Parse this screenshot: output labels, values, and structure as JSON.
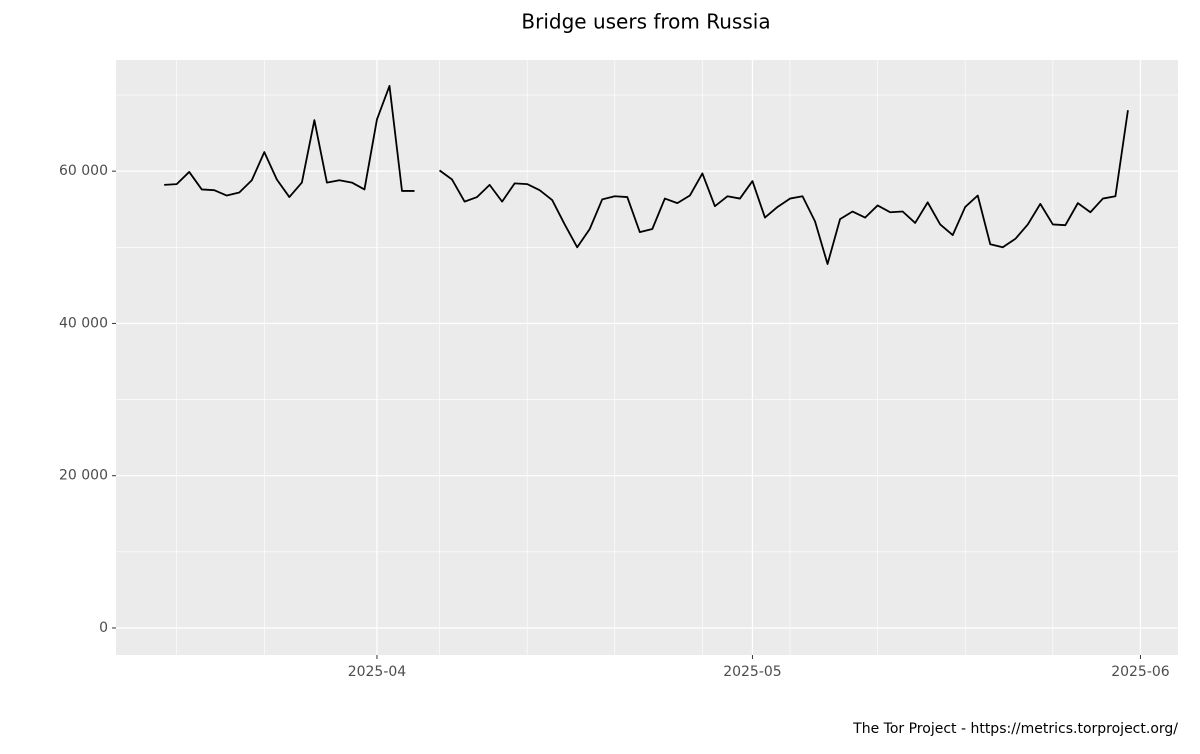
{
  "chart_data": {
    "type": "line",
    "title": "Bridge users from Russia",
    "caption": "The Tor Project - https://metrics.torproject.org/",
    "x": [
      0,
      1,
      2,
      3,
      4,
      5,
      6,
      7,
      8,
      9,
      10,
      11,
      12,
      13,
      14,
      15,
      16,
      17,
      18,
      19,
      20,
      21,
      22,
      23,
      24,
      25,
      26,
      27,
      28,
      29,
      30,
      31,
      32,
      33,
      34,
      35,
      36,
      37,
      38,
      39,
      40,
      41,
      42,
      43,
      44,
      45,
      46,
      47,
      48,
      49,
      50,
      51,
      52,
      53,
      54,
      55,
      56,
      57,
      58,
      59,
      60,
      61,
      62,
      63,
      64,
      65,
      66,
      67,
      68,
      69,
      70,
      71,
      72,
      73,
      74,
      75,
      76,
      77
    ],
    "series": [
      {
        "color": "#000000",
        "values": [
          58200,
          58300,
          59900,
          57600,
          57500,
          56800,
          57200,
          58800,
          62500,
          58900,
          56600,
          58500,
          66700,
          58500,
          58800,
          58500,
          57600,
          66800,
          71200,
          57400,
          57400,
          null,
          60100,
          58900,
          56000,
          56600,
          58200,
          56000,
          58400,
          58300,
          57500,
          56200,
          53000,
          50000,
          52400,
          56300,
          56700,
          56600,
          52000,
          52400,
          56400,
          55800,
          56800,
          59700,
          55400,
          56700,
          56400,
          58700,
          53900,
          55300,
          56400,
          56700,
          53400,
          47800,
          53700,
          54700,
          53900,
          55500,
          54600,
          54700,
          53200,
          55900,
          53000,
          51600,
          55300,
          56800,
          50400,
          50000,
          51100,
          53000,
          55700,
          53000,
          52900,
          55800,
          54600,
          56400,
          56700,
          68000
        ]
      }
    ],
    "xlim": [
      -3.85,
      81
    ],
    "xticks": [
      {
        "value": 17,
        "label": "2025-04"
      },
      {
        "value": 47,
        "label": "2025-05"
      },
      {
        "value": 78,
        "label": "2025-06"
      }
    ],
    "xminor": [
      1,
      8,
      22,
      29,
      36,
      43,
      50,
      57,
      64,
      71
    ],
    "ylim": [
      -3550,
      74600
    ],
    "yticks": [
      0,
      {
        "value": 20000,
        "label": "20 000"
      },
      {
        "value": 40000,
        "label": "40 000"
      },
      {
        "value": 60000,
        "label": "60 000"
      }
    ],
    "yminor": [
      10000,
      30000,
      50000,
      70000
    ],
    "grid": true
  }
}
